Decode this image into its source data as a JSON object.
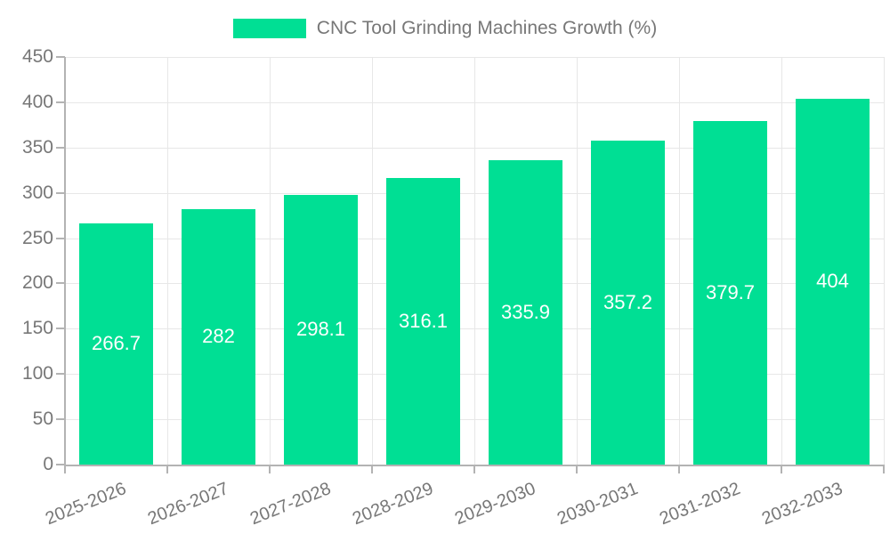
{
  "colors": {
    "bar": "#00df94",
    "text": "#777777",
    "bar_label": "#ffffff",
    "grid": "#e7e7e7",
    "axis": "#b3b3b3",
    "background": "#ffffff"
  },
  "legend": {
    "label": "CNC Tool Grinding Machines Growth (%)"
  },
  "chart_data": {
    "type": "bar",
    "title": "CNC Tool Grinding Machines Growth (%)",
    "categories": [
      "2025-2026",
      "2026-2027",
      "2027-2028",
      "2028-2029",
      "2029-2030",
      "2030-2031",
      "2031-2032",
      "2032-2033"
    ],
    "values": [
      266.7,
      282,
      298.1,
      316.1,
      335.9,
      357.2,
      379.7,
      404
    ],
    "bar_labels": [
      "266.7",
      "282",
      "298.1",
      "316.1",
      "335.9",
      "357.2",
      "379.7",
      "404"
    ],
    "xlabel": "",
    "ylabel": "",
    "ylim": [
      0,
      450
    ],
    "ytick_step": 50,
    "ytick_labels": [
      "0",
      "50",
      "100",
      "150",
      "200",
      "250",
      "300",
      "350",
      "400",
      "450"
    ],
    "grid": true,
    "legend_position": "top"
  }
}
